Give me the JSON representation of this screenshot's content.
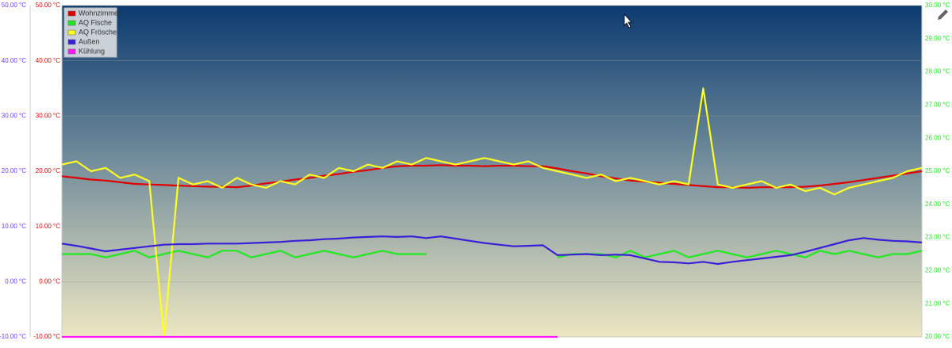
{
  "chart_data": {
    "type": "line",
    "ylim": [
      -10,
      50
    ],
    "yticks": [
      {
        "value": -10,
        "label": "-10.00 °C"
      },
      {
        "value": 0,
        "label": "0.00 °C"
      },
      {
        "value": 10,
        "label": "10.00 °C"
      },
      {
        "value": 20,
        "label": "20.00 °C"
      },
      {
        "value": 30,
        "label": "30.00 °C"
      },
      {
        "value": 40,
        "label": "40.00 °C"
      },
      {
        "value": 50,
        "label": "50.00 °C"
      }
    ],
    "y3lim": [
      -10,
      50
    ],
    "y3ticks": [
      {
        "value": -10,
        "label": "-10.00 °C"
      },
      {
        "value": 0,
        "label": "0.00 °C"
      },
      {
        "value": 10,
        "label": "10.00 °C"
      },
      {
        "value": 20,
        "label": "20.00 °C"
      },
      {
        "value": 30,
        "label": "30.00 °C"
      },
      {
        "value": 40,
        "label": "40.00 °C"
      },
      {
        "value": 50,
        "label": "50.00 °C"
      }
    ],
    "y2lim": [
      20,
      30
    ],
    "y2ticks": [
      {
        "value": 20,
        "label": "20.00 °C"
      },
      {
        "value": 21,
        "label": "21.00 °C"
      },
      {
        "value": 22,
        "label": "22.00 °C"
      },
      {
        "value": 23,
        "label": "23.00 °C"
      },
      {
        "value": 24,
        "label": "24.00 °C"
      },
      {
        "value": 25,
        "label": "25.00 °C"
      },
      {
        "value": 26,
        "label": "26.00 °C"
      },
      {
        "value": 27,
        "label": "27.00 °C"
      },
      {
        "value": 28,
        "label": "28.00 °C"
      },
      {
        "value": 29,
        "label": "29.00 °C"
      },
      {
        "value": 30,
        "label": "30.00 °C"
      }
    ],
    "ytick_color": "#e00000",
    "y2tick_color": "#22e822",
    "y3tick_color": "#6a3cff",
    "grid": true,
    "legend": "top-left",
    "series": [
      {
        "name": "Wohnzimmer",
        "color": "#e00000",
        "axis": "y",
        "values": [
          19.1,
          18.8,
          18.5,
          18.3,
          18.0,
          17.7,
          17.6,
          17.5,
          17.4,
          17.3,
          17.2,
          17.2,
          17.1,
          17.4,
          17.8,
          18.1,
          18.5,
          18.8,
          19.2,
          19.5,
          19.9,
          20.2,
          20.6,
          20.9,
          21.0,
          21.0,
          21.1,
          21.0,
          21.0,
          20.9,
          21.0,
          21.0,
          20.9,
          20.9,
          20.5,
          20.0,
          19.6,
          19.1,
          18.7,
          18.3,
          18.1,
          17.9,
          17.7,
          17.5,
          17.3,
          17.1,
          17.1,
          17.0,
          17.1,
          17.1,
          17.1,
          17.2,
          17.4,
          17.7,
          18.0,
          18.4,
          18.8,
          19.2,
          19.6,
          20.0
        ]
      },
      {
        "name": "AQ Fische",
        "color": "#22e822",
        "axis": "y2",
        "values": [
          22.5,
          22.5,
          22.5,
          22.4,
          22.5,
          22.6,
          22.4,
          22.5,
          22.6,
          22.5,
          22.4,
          22.6,
          22.6,
          22.4,
          22.5,
          22.6,
          22.4,
          22.5,
          22.6,
          22.5,
          22.4,
          22.5,
          22.6,
          22.5,
          22.5,
          22.5,
          null,
          null,
          null,
          null,
          null,
          null,
          null,
          null,
          22.4,
          22.5,
          22.5,
          22.5,
          22.4,
          22.6,
          22.4,
          22.5,
          22.6,
          22.4,
          22.5,
          22.6,
          22.5,
          22.4,
          22.5,
          22.6,
          22.5,
          22.4,
          22.6,
          22.5,
          22.6,
          22.5,
          22.4,
          22.5,
          22.5,
          22.6
        ]
      },
      {
        "name": "AQ Frösche",
        "color": "#ffff22",
        "axis": "y2",
        "values": [
          25.2,
          25.3,
          25.0,
          25.1,
          24.8,
          24.9,
          24.7,
          20.0,
          24.8,
          24.6,
          24.7,
          24.5,
          24.8,
          24.6,
          24.5,
          24.7,
          24.6,
          24.9,
          24.8,
          25.1,
          25.0,
          25.2,
          25.1,
          25.3,
          25.2,
          25.4,
          25.3,
          25.2,
          25.3,
          25.4,
          25.3,
          25.2,
          25.3,
          25.1,
          25.0,
          24.9,
          24.8,
          24.9,
          24.7,
          24.8,
          24.7,
          24.6,
          24.7,
          24.6,
          27.5,
          24.6,
          24.5,
          24.6,
          24.7,
          24.5,
          24.6,
          24.4,
          24.5,
          24.3,
          24.5,
          24.6,
          24.7,
          24.8,
          25.0,
          25.1
        ]
      },
      {
        "name": "Außen",
        "color": "#3a1fd8",
        "axis": "y3",
        "values": [
          6.9,
          6.5,
          6.0,
          5.5,
          5.8,
          6.1,
          6.4,
          6.7,
          6.8,
          6.8,
          6.9,
          6.9,
          6.9,
          7.0,
          7.1,
          7.2,
          7.4,
          7.5,
          7.7,
          7.8,
          8.0,
          8.1,
          8.2,
          8.1,
          8.2,
          7.9,
          8.2,
          7.8,
          7.4,
          7.0,
          6.7,
          6.4,
          6.5,
          6.6,
          4.8,
          4.9,
          5.0,
          4.8,
          4.9,
          4.8,
          4.2,
          3.6,
          3.5,
          3.3,
          3.6,
          3.2,
          3.6,
          3.9,
          4.2,
          4.5,
          4.8,
          5.4,
          6.1,
          6.8,
          7.5,
          7.9,
          7.6,
          7.4,
          7.3,
          7.1
        ]
      },
      {
        "name": "Kühlung",
        "color": "#ff1aff",
        "axis": "y",
        "values": [
          -10,
          -10,
          -10,
          -10,
          -10,
          -10,
          -10,
          -10,
          -10,
          -10,
          -10,
          -10,
          -10,
          -10,
          -10,
          -10,
          -10,
          -10,
          -10,
          -10,
          -10,
          -10,
          -10,
          -10,
          -10,
          -10,
          -10,
          -10,
          -10,
          -10,
          -10,
          -10,
          -10,
          -10,
          -10,
          null,
          null,
          null,
          null,
          null,
          null,
          null,
          null,
          null,
          null,
          null,
          null,
          null,
          null,
          null,
          null,
          null,
          null,
          null,
          null,
          null,
          null,
          null,
          null,
          null
        ]
      }
    ]
  }
}
